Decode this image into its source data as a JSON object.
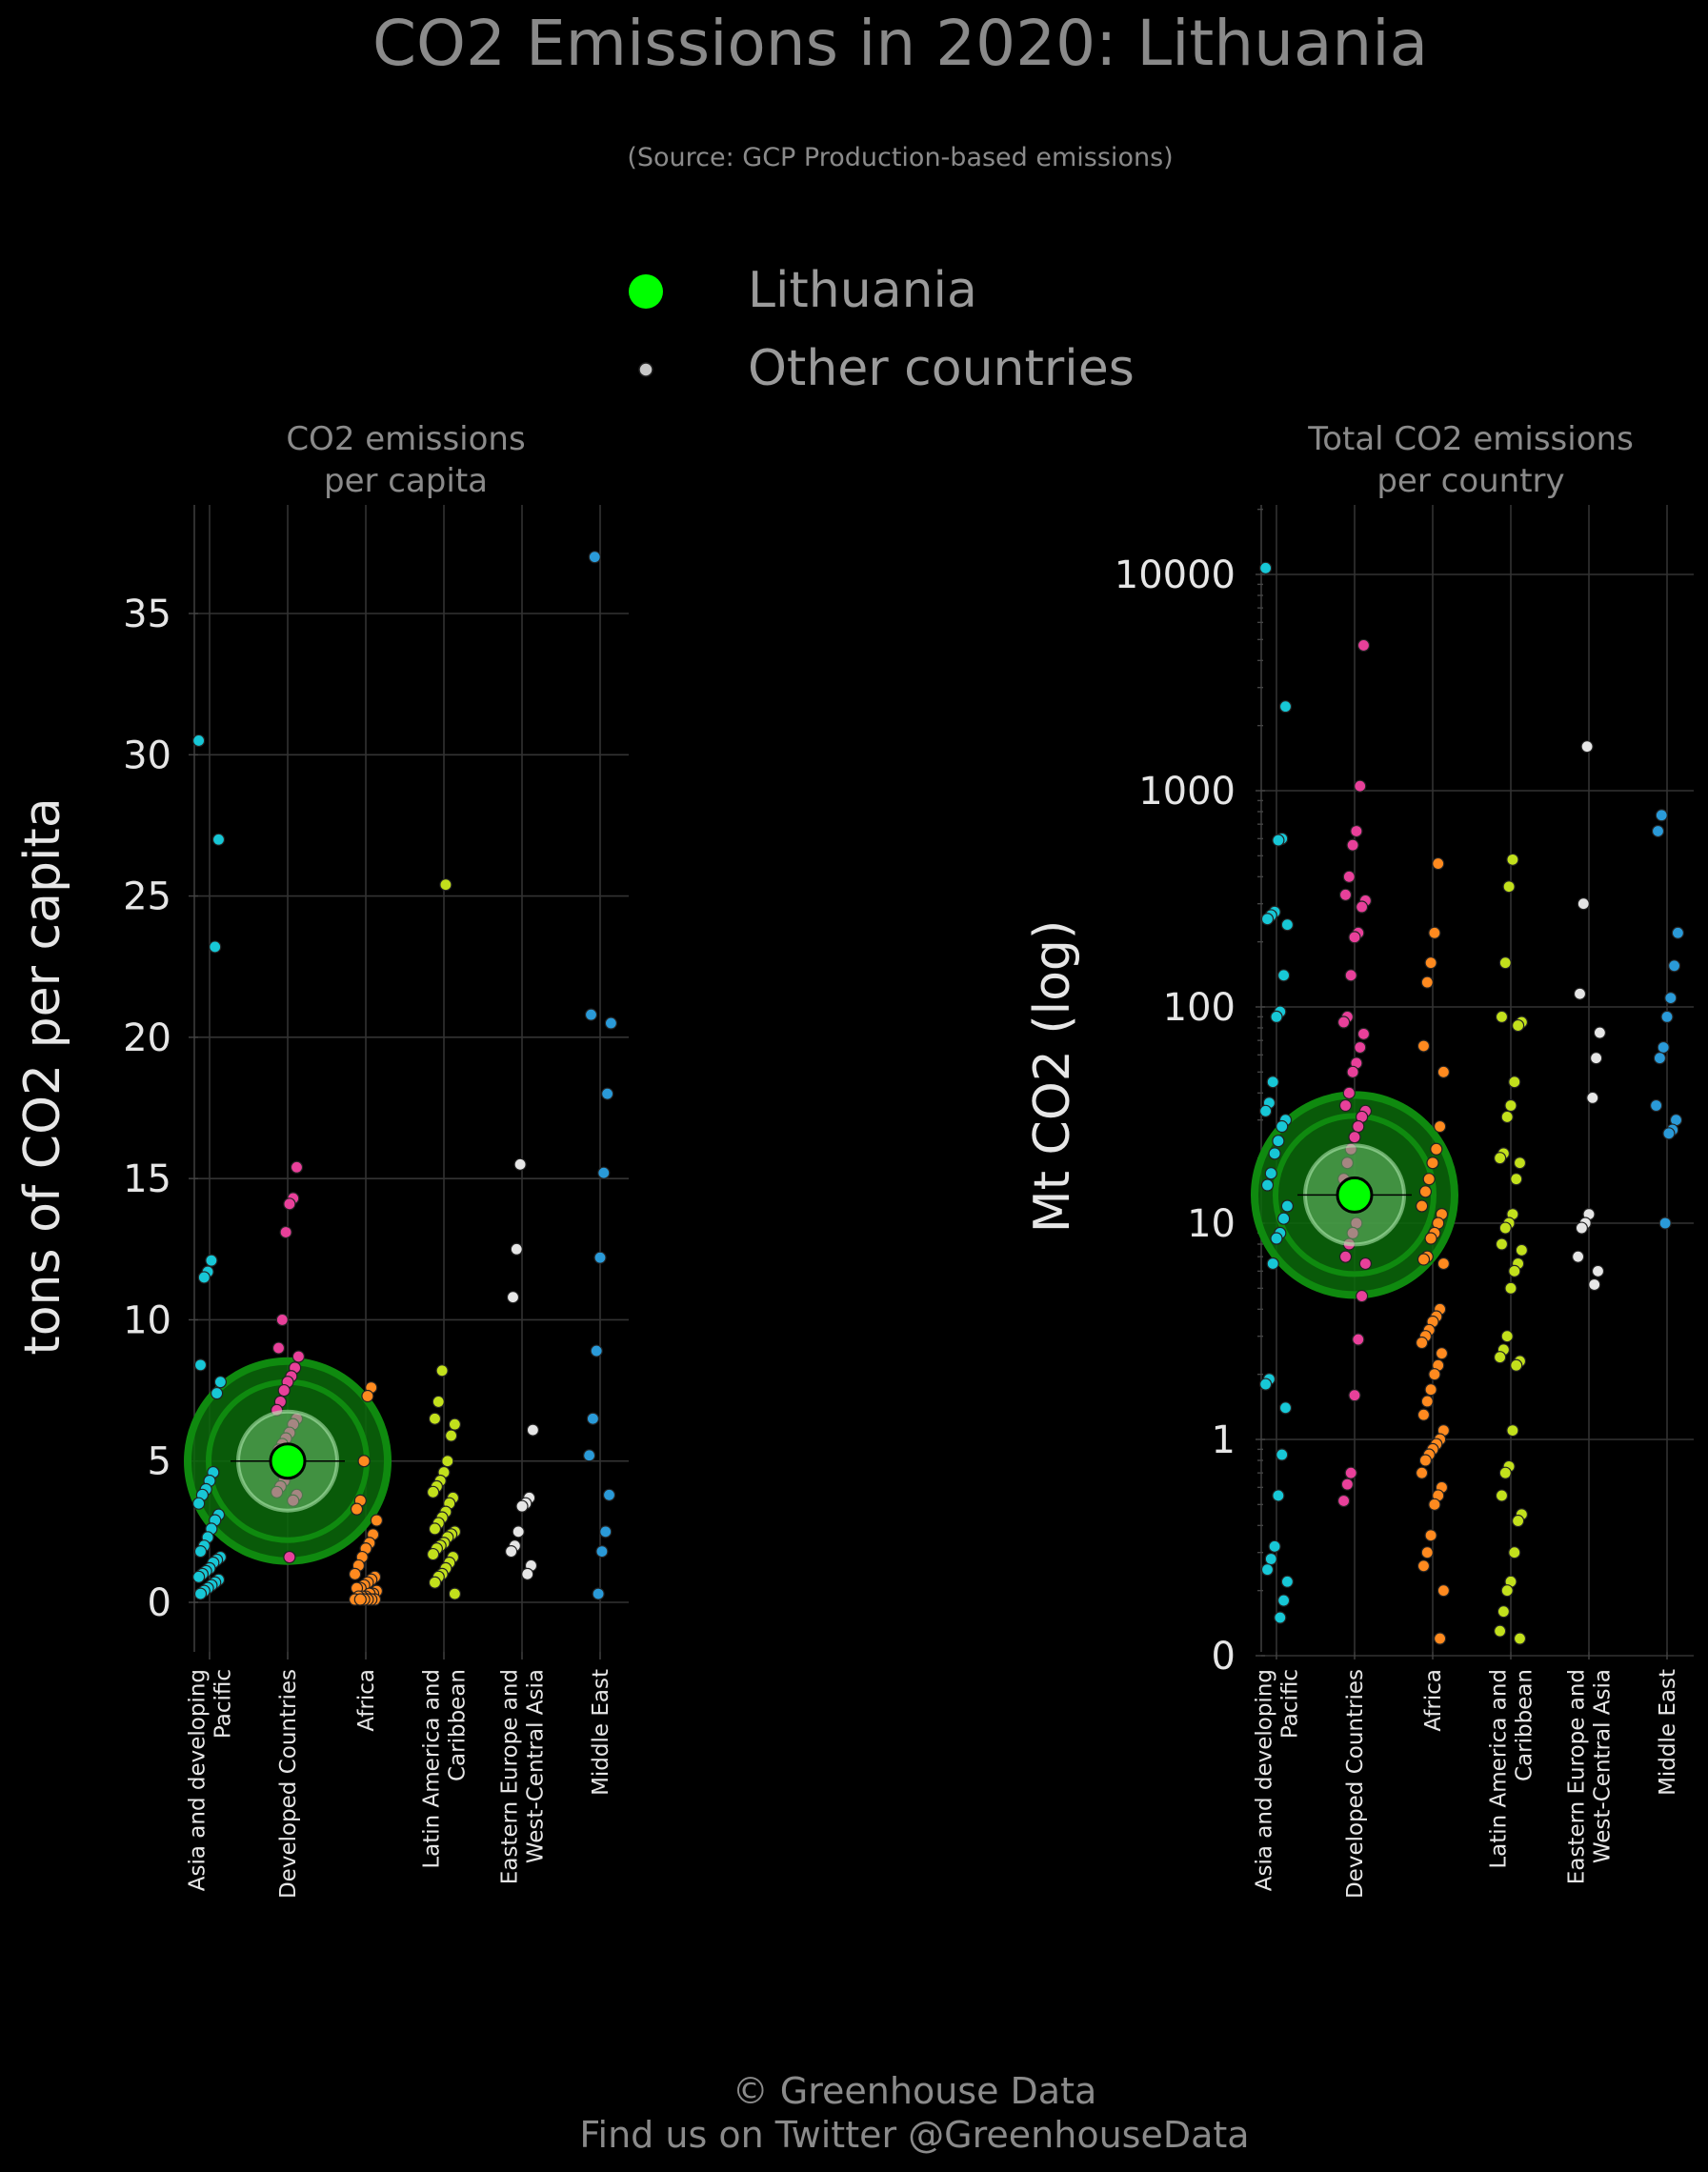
{
  "title": "CO2 Emissions in 2020: Lithuania",
  "subtitle": "(Source: GCP Production-based emissions)",
  "legend": [
    {
      "label": "Lithuania",
      "color": "#00ff00"
    },
    {
      "label": "Other countries",
      "color": "#c8c8c8"
    }
  ],
  "footer": {
    "line1": "© Greenhouse Data",
    "line2": "Find us on Twitter @GreenhouseData"
  },
  "colors": {
    "Asia and developing Pacific": "#17c7d6",
    "Developed Countries": "#e8409a",
    "Africa": "#ff8a1f",
    "Latin America and Caribbean": "#c2e01c",
    "Eastern Europe and West-Central Asia": "#e6e6e6",
    "Middle East": "#2a9ad8",
    "highlight": "#00ff00"
  },
  "chart_data": [
    {
      "type": "scatter",
      "title": "CO2 emissions\nper capita",
      "ylabel": "tons of CO2 per capita",
      "ylim": [
        -1.5,
        39
      ],
      "scale": "linear",
      "ticks": [
        0,
        5,
        10,
        15,
        20,
        25,
        30,
        35
      ],
      "tick_labels": [
        "0",
        "5",
        "10",
        "15",
        "20",
        "25",
        "30",
        "35"
      ],
      "grid": true,
      "categories": [
        "Asia and developing\nPacific",
        "Developed Countries",
        "Africa",
        "Latin America and\nCaribbean",
        "Eastern Europe and\nWest-Central Asia",
        "Middle East"
      ],
      "highlight": {
        "name": "Lithuania",
        "category": "Developed Countries",
        "value": 5.0
      },
      "series": [
        {
          "category": "Asia and developing Pacific",
          "values": [
            30.5,
            27.0,
            23.2,
            12.1,
            11.7,
            11.5,
            8.4,
            7.8,
            7.4,
            4.6,
            4.3,
            4.0,
            3.8,
            3.5,
            3.1,
            2.9,
            2.6,
            2.3,
            2.0,
            1.8,
            1.6,
            1.5,
            1.4,
            1.2,
            1.1,
            1.0,
            0.9,
            0.8,
            0.7,
            0.6,
            0.5,
            0.4,
            0.3
          ]
        },
        {
          "category": "Developed Countries",
          "values": [
            15.4,
            14.3,
            14.1,
            13.1,
            10.0,
            9.0,
            8.7,
            8.3,
            8.0,
            7.8,
            7.5,
            7.1,
            6.8,
            6.5,
            6.3,
            6.0,
            5.8,
            5.6,
            5.4,
            5.2,
            4.9,
            4.7,
            4.5,
            4.3,
            4.1,
            3.9,
            3.8,
            3.6,
            1.6
          ]
        },
        {
          "category": "Africa",
          "values": [
            7.6,
            7.3,
            5.0,
            3.6,
            3.3,
            2.9,
            2.4,
            2.1,
            1.9,
            1.6,
            1.3,
            1.0,
            0.9,
            0.8,
            0.7,
            0.6,
            0.5,
            0.5,
            0.4,
            0.3,
            0.3,
            0.2,
            0.2,
            0.2,
            0.1,
            0.1,
            0.1,
            0.1,
            0.1,
            0.1
          ]
        },
        {
          "category": "Latin America and Caribbean",
          "values": [
            25.4,
            8.2,
            7.1,
            6.5,
            6.3,
            5.9,
            5.0,
            4.6,
            4.3,
            4.1,
            3.9,
            3.7,
            3.5,
            3.2,
            3.0,
            2.8,
            2.6,
            2.5,
            2.4,
            2.3,
            2.1,
            2.0,
            1.9,
            1.7,
            1.6,
            1.4,
            1.2,
            1.0,
            0.9,
            0.7,
            0.3
          ]
        },
        {
          "category": "Eastern Europe and West-Central Asia",
          "values": [
            15.5,
            12.5,
            10.8,
            6.1,
            3.7,
            3.5,
            3.4,
            2.5,
            2.0,
            1.8,
            1.3,
            1.0
          ]
        },
        {
          "category": "Middle East",
          "values": [
            37.0,
            20.8,
            20.5,
            18.0,
            15.2,
            12.2,
            8.9,
            6.5,
            5.2,
            3.8,
            2.5,
            1.8,
            0.3
          ]
        }
      ]
    },
    {
      "type": "scatter",
      "title": "Total CO2 emissions\nper country",
      "ylabel": "Mt CO2 (log)",
      "ylim": [
        0,
        20000
      ],
      "scale": "log",
      "ticks": [
        0,
        1,
        10,
        100,
        1000,
        10000
      ],
      "tick_labels": [
        "0",
        "1",
        "10",
        "100",
        "1000",
        "10000"
      ],
      "grid": true,
      "categories": [
        "Asia and developing\nPacific",
        "Developed Countries",
        "Africa",
        "Latin America and\nCaribbean",
        "Eastern Europe and\nWest-Central Asia",
        "Middle East"
      ],
      "highlight": {
        "name": "Lithuania",
        "category": "Developed Countries",
        "value": 13.5
      },
      "series": [
        {
          "category": "Asia and developing Pacific",
          "values": [
            10700,
            2450,
            600,
            590,
            275,
            265,
            255,
            240,
            140,
            95,
            90,
            45,
            36,
            33,
            30,
            28,
            24,
            21,
            17,
            15,
            12,
            10.5,
            9,
            8.5,
            6.5,
            1.9,
            1.8,
            1.4,
            0.85,
            0.55,
            0.32,
            0.28,
            0.25,
            0.22,
            0.18,
            0.15
          ]
        },
        {
          "category": "Developed Countries",
          "values": [
            4700,
            1050,
            650,
            560,
            400,
            330,
            310,
            290,
            220,
            210,
            140,
            90,
            85,
            75,
            65,
            55,
            50,
            40,
            35,
            33,
            31,
            28,
            25,
            22,
            19,
            16,
            14,
            12,
            10,
            9,
            8,
            7,
            6.5,
            4.6,
            2.9,
            1.6,
            0.7,
            0.62,
            0.52
          ]
        },
        {
          "category": "Africa",
          "values": [
            460,
            220,
            160,
            130,
            66,
            50,
            28,
            22,
            19,
            16,
            14,
            12,
            11,
            10,
            9,
            8.5,
            7,
            6.8,
            6.5,
            4,
            3.7,
            3.5,
            3.2,
            3,
            2.8,
            2.5,
            2.2,
            2,
            1.7,
            1.5,
            1.3,
            1.1,
            1,
            0.95,
            0.9,
            0.85,
            0.8,
            0.7,
            0.6,
            0.55,
            0.5,
            0.36,
            0.3,
            0.26,
            0.2,
            0.12
          ]
        },
        {
          "category": "Latin America and Caribbean",
          "values": [
            480,
            360,
            160,
            90,
            85,
            82,
            45,
            35,
            31,
            21,
            20,
            19,
            16,
            11,
            10,
            9.5,
            8,
            7.5,
            6.5,
            6,
            5,
            3,
            2.6,
            2.4,
            2.3,
            2.2,
            1.1,
            0.75,
            0.7,
            0.55,
            0.45,
            0.42,
            0.3,
            0.22,
            0.2,
            0.16,
            0.13,
            0.12
          ]
        },
        {
          "category": "Eastern Europe and West-Central Asia",
          "values": [
            1600,
            300,
            115,
            76,
            58,
            38,
            11,
            10,
            9.5,
            7,
            6,
            5.2
          ]
        },
        {
          "category": "Middle East",
          "values": [
            770,
            650,
            220,
            155,
            110,
            90,
            65,
            58,
            35,
            30,
            27,
            26,
            10
          ]
        }
      ]
    }
  ]
}
